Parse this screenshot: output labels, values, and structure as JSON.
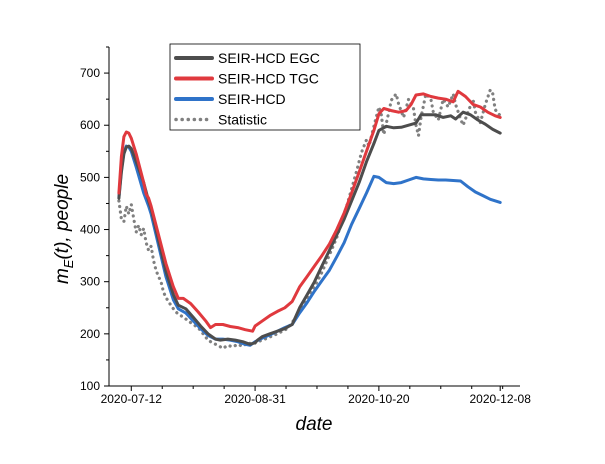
{
  "chart_data": {
    "type": "line",
    "title": "",
    "xlabel": "date",
    "ylabel": "m_E(t), people",
    "ylabel_parts": {
      "m": "m",
      "sub": "E",
      "rest": "(t), people"
    },
    "x_start": "2020-07-03",
    "x_end": "2020-12-16",
    "xlim": [
      "2020-07-03",
      "2020-12-16"
    ],
    "ylim": [
      100,
      750
    ],
    "xticks": [
      "2020-07-12",
      "2020-08-31",
      "2020-10-20",
      "2020-12-08"
    ],
    "yticks": [
      100,
      200,
      300,
      400,
      500,
      600,
      700
    ],
    "legend_position": "top-left",
    "grid": false,
    "series": [
      {
        "name": "SEIR-HCD EGC",
        "color": "#4d4d4d",
        "style": "solid",
        "points": [
          [
            "2020-07-07",
            460
          ],
          [
            "2020-07-08",
            510
          ],
          [
            "2020-07-09",
            545
          ],
          [
            "2020-07-10",
            558
          ],
          [
            "2020-07-11",
            560
          ],
          [
            "2020-07-12",
            555
          ],
          [
            "2020-07-14",
            530
          ],
          [
            "2020-07-17",
            490
          ],
          [
            "2020-07-19",
            455
          ],
          [
            "2020-07-20",
            440
          ],
          [
            "2020-07-23",
            380
          ],
          [
            "2020-07-26",
            320
          ],
          [
            "2020-07-29",
            275
          ],
          [
            "2020-07-31",
            255
          ],
          [
            "2020-08-03",
            248
          ],
          [
            "2020-08-06",
            232
          ],
          [
            "2020-08-09",
            215
          ],
          [
            "2020-08-12",
            200
          ],
          [
            "2020-08-15",
            190
          ],
          [
            "2020-08-17",
            188
          ],
          [
            "2020-08-20",
            190
          ],
          [
            "2020-08-23",
            188
          ],
          [
            "2020-08-26",
            185
          ],
          [
            "2020-08-29",
            180
          ],
          [
            "2020-08-31",
            183
          ],
          [
            "2020-09-01",
            188
          ],
          [
            "2020-09-03",
            195
          ],
          [
            "2020-09-06",
            200
          ],
          [
            "2020-09-09",
            205
          ],
          [
            "2020-09-12",
            210
          ],
          [
            "2020-09-15",
            218
          ],
          [
            "2020-09-18",
            250
          ],
          [
            "2020-09-21",
            275
          ],
          [
            "2020-09-24",
            300
          ],
          [
            "2020-09-27",
            330
          ],
          [
            "2020-09-30",
            360
          ],
          [
            "2020-10-03",
            390
          ],
          [
            "2020-10-06",
            420
          ],
          [
            "2020-10-09",
            455
          ],
          [
            "2020-10-12",
            490
          ],
          [
            "2020-10-15",
            530
          ],
          [
            "2020-10-18",
            565
          ],
          [
            "2020-10-20",
            590
          ],
          [
            "2020-10-23",
            598
          ],
          [
            "2020-10-26",
            595
          ],
          [
            "2020-10-29",
            596
          ],
          [
            "2020-11-01",
            600
          ],
          [
            "2020-11-04",
            604
          ],
          [
            "2020-11-06",
            620
          ],
          [
            "2020-11-09",
            620
          ],
          [
            "2020-11-12",
            620
          ],
          [
            "2020-11-15",
            615
          ],
          [
            "2020-11-18",
            618
          ],
          [
            "2020-11-20",
            612
          ],
          [
            "2020-11-23",
            625
          ],
          [
            "2020-11-26",
            620
          ],
          [
            "2020-11-29",
            610
          ],
          [
            "2020-12-02",
            602
          ],
          [
            "2020-12-05",
            592
          ],
          [
            "2020-12-08",
            585
          ]
        ]
      },
      {
        "name": "SEIR-HCD TGC",
        "color": "#e0393e",
        "style": "solid",
        "points": [
          [
            "2020-07-07",
            470
          ],
          [
            "2020-07-08",
            540
          ],
          [
            "2020-07-09",
            578
          ],
          [
            "2020-07-10",
            587
          ],
          [
            "2020-07-11",
            585
          ],
          [
            "2020-07-12",
            575
          ],
          [
            "2020-07-14",
            545
          ],
          [
            "2020-07-17",
            490
          ],
          [
            "2020-07-18",
            468
          ],
          [
            "2020-07-19",
            460
          ],
          [
            "2020-07-20",
            445
          ],
          [
            "2020-07-23",
            390
          ],
          [
            "2020-07-26",
            335
          ],
          [
            "2020-07-29",
            290
          ],
          [
            "2020-07-31",
            268
          ],
          [
            "2020-08-02",
            268
          ],
          [
            "2020-08-05",
            258
          ],
          [
            "2020-08-08",
            242
          ],
          [
            "2020-08-11",
            225
          ],
          [
            "2020-08-13",
            212
          ],
          [
            "2020-08-15",
            218
          ],
          [
            "2020-08-18",
            218
          ],
          [
            "2020-08-21",
            214
          ],
          [
            "2020-08-24",
            212
          ],
          [
            "2020-08-27",
            208
          ],
          [
            "2020-08-30",
            205
          ],
          [
            "2020-08-31",
            215
          ],
          [
            "2020-09-03",
            225
          ],
          [
            "2020-09-06",
            235
          ],
          [
            "2020-09-09",
            243
          ],
          [
            "2020-09-12",
            250
          ],
          [
            "2020-09-15",
            262
          ],
          [
            "2020-09-18",
            290
          ],
          [
            "2020-09-21",
            310
          ],
          [
            "2020-09-24",
            330
          ],
          [
            "2020-09-27",
            350
          ],
          [
            "2020-09-30",
            372
          ],
          [
            "2020-10-03",
            400
          ],
          [
            "2020-10-06",
            432
          ],
          [
            "2020-10-09",
            470
          ],
          [
            "2020-10-12",
            510
          ],
          [
            "2020-10-15",
            550
          ],
          [
            "2020-10-18",
            590
          ],
          [
            "2020-10-20",
            622
          ],
          [
            "2020-10-22",
            632
          ],
          [
            "2020-10-25",
            628
          ],
          [
            "2020-10-28",
            625
          ],
          [
            "2020-10-31",
            628
          ],
          [
            "2020-11-02",
            640
          ],
          [
            "2020-11-04",
            658
          ],
          [
            "2020-11-07",
            660
          ],
          [
            "2020-11-10",
            655
          ],
          [
            "2020-11-13",
            652
          ],
          [
            "2020-11-16",
            650
          ],
          [
            "2020-11-19",
            645
          ],
          [
            "2020-11-21",
            665
          ],
          [
            "2020-11-24",
            655
          ],
          [
            "2020-11-27",
            640
          ],
          [
            "2020-11-30",
            635
          ],
          [
            "2020-12-03",
            625
          ],
          [
            "2020-12-06",
            618
          ],
          [
            "2020-12-08",
            615
          ]
        ]
      },
      {
        "name": "SEIR-HCD",
        "color": "#2f73c9",
        "style": "solid",
        "points": [
          [
            "2020-07-07",
            462
          ],
          [
            "2020-07-08",
            515
          ],
          [
            "2020-07-09",
            548
          ],
          [
            "2020-07-10",
            560
          ],
          [
            "2020-07-11",
            558
          ],
          [
            "2020-07-12",
            550
          ],
          [
            "2020-07-14",
            520
          ],
          [
            "2020-07-17",
            470
          ],
          [
            "2020-07-19",
            445
          ],
          [
            "2020-07-20",
            430
          ],
          [
            "2020-07-23",
            370
          ],
          [
            "2020-07-26",
            310
          ],
          [
            "2020-07-29",
            265
          ],
          [
            "2020-07-31",
            248
          ],
          [
            "2020-08-03",
            240
          ],
          [
            "2020-08-06",
            225
          ],
          [
            "2020-08-09",
            210
          ],
          [
            "2020-08-12",
            197
          ],
          [
            "2020-08-15",
            190
          ],
          [
            "2020-08-18",
            190
          ],
          [
            "2020-08-21",
            188
          ],
          [
            "2020-08-24",
            185
          ],
          [
            "2020-08-27",
            180
          ],
          [
            "2020-08-29",
            178
          ],
          [
            "2020-08-31",
            185
          ],
          [
            "2020-09-03",
            192
          ],
          [
            "2020-09-06",
            198
          ],
          [
            "2020-09-09",
            205
          ],
          [
            "2020-09-12",
            212
          ],
          [
            "2020-09-15",
            218
          ],
          [
            "2020-09-18",
            240
          ],
          [
            "2020-09-21",
            260
          ],
          [
            "2020-09-24",
            282
          ],
          [
            "2020-09-27",
            302
          ],
          [
            "2020-09-30",
            322
          ],
          [
            "2020-10-03",
            348
          ],
          [
            "2020-10-06",
            375
          ],
          [
            "2020-10-09",
            410
          ],
          [
            "2020-10-12",
            440
          ],
          [
            "2020-10-15",
            470
          ],
          [
            "2020-10-18",
            502
          ],
          [
            "2020-10-20",
            500
          ],
          [
            "2020-10-23",
            490
          ],
          [
            "2020-10-26",
            488
          ],
          [
            "2020-10-29",
            490
          ],
          [
            "2020-11-01",
            495
          ],
          [
            "2020-11-04",
            500
          ],
          [
            "2020-11-07",
            497
          ],
          [
            "2020-11-10",
            496
          ],
          [
            "2020-11-13",
            495
          ],
          [
            "2020-11-16",
            495
          ],
          [
            "2020-11-19",
            494
          ],
          [
            "2020-11-22",
            493
          ],
          [
            "2020-11-25",
            482
          ],
          [
            "2020-11-28",
            472
          ],
          [
            "2020-12-01",
            465
          ],
          [
            "2020-12-04",
            458
          ],
          [
            "2020-12-08",
            452
          ]
        ]
      },
      {
        "name": "Statistic",
        "color": "#808080",
        "style": "dotted",
        "points": [
          [
            "2020-07-07",
            455
          ],
          [
            "2020-07-08",
            420
          ],
          [
            "2020-07-09",
            415
          ],
          [
            "2020-07-10",
            445
          ],
          [
            "2020-07-11",
            430
          ],
          [
            "2020-07-12",
            448
          ],
          [
            "2020-07-13",
            420
          ],
          [
            "2020-07-14",
            395
          ],
          [
            "2020-07-15",
            408
          ],
          [
            "2020-07-16",
            390
          ],
          [
            "2020-07-17",
            402
          ],
          [
            "2020-07-18",
            375
          ],
          [
            "2020-07-19",
            360
          ],
          [
            "2020-07-20",
            368
          ],
          [
            "2020-07-21",
            340
          ],
          [
            "2020-07-22",
            322
          ],
          [
            "2020-07-23",
            310
          ],
          [
            "2020-07-24",
            300
          ],
          [
            "2020-07-25",
            280
          ],
          [
            "2020-07-26",
            270
          ],
          [
            "2020-07-27",
            262
          ],
          [
            "2020-07-28",
            255
          ],
          [
            "2020-07-29",
            248
          ],
          [
            "2020-07-30",
            242
          ],
          [
            "2020-07-31",
            238
          ],
          [
            "2020-08-02",
            232
          ],
          [
            "2020-08-04",
            225
          ],
          [
            "2020-08-06",
            218
          ],
          [
            "2020-08-08",
            212
          ],
          [
            "2020-08-10",
            200
          ],
          [
            "2020-08-12",
            188
          ],
          [
            "2020-08-14",
            182
          ],
          [
            "2020-08-16",
            178
          ],
          [
            "2020-08-18",
            172
          ],
          [
            "2020-08-20",
            178
          ],
          [
            "2020-08-22",
            175
          ],
          [
            "2020-08-24",
            180
          ],
          [
            "2020-08-26",
            176
          ],
          [
            "2020-08-28",
            183
          ],
          [
            "2020-08-30",
            180
          ],
          [
            "2020-09-01",
            185
          ],
          [
            "2020-09-03",
            188
          ],
          [
            "2020-09-05",
            192
          ],
          [
            "2020-09-07",
            196
          ],
          [
            "2020-09-09",
            200
          ],
          [
            "2020-09-11",
            205
          ],
          [
            "2020-09-13",
            210
          ],
          [
            "2020-09-15",
            222
          ],
          [
            "2020-09-17",
            235
          ],
          [
            "2020-09-19",
            250
          ],
          [
            "2020-09-21",
            268
          ],
          [
            "2020-09-23",
            282
          ],
          [
            "2020-09-25",
            300
          ],
          [
            "2020-09-27",
            318
          ],
          [
            "2020-09-29",
            340
          ],
          [
            "2020-10-01",
            362
          ],
          [
            "2020-10-03",
            385
          ],
          [
            "2020-10-05",
            415
          ],
          [
            "2020-10-07",
            445
          ],
          [
            "2020-10-09",
            478
          ],
          [
            "2020-10-11",
            512
          ],
          [
            "2020-10-13",
            548
          ],
          [
            "2020-10-15",
            572
          ],
          [
            "2020-10-16",
            560
          ],
          [
            "2020-10-18",
            598
          ],
          [
            "2020-10-20",
            635
          ],
          [
            "2020-10-21",
            620
          ],
          [
            "2020-10-22",
            582
          ],
          [
            "2020-10-24",
            625
          ],
          [
            "2020-10-25",
            648
          ],
          [
            "2020-10-27",
            660
          ],
          [
            "2020-10-28",
            640
          ],
          [
            "2020-10-30",
            615
          ],
          [
            "2020-11-01",
            650
          ],
          [
            "2020-11-03",
            632
          ],
          [
            "2020-11-04",
            600
          ],
          [
            "2020-11-05",
            580
          ],
          [
            "2020-11-06",
            615
          ],
          [
            "2020-11-08",
            660
          ],
          [
            "2020-11-10",
            650
          ],
          [
            "2020-11-11",
            625
          ],
          [
            "2020-11-13",
            610
          ],
          [
            "2020-11-15",
            650
          ],
          [
            "2020-11-17",
            635
          ],
          [
            "2020-11-19",
            660
          ],
          [
            "2020-11-20",
            640
          ],
          [
            "2020-11-22",
            612
          ],
          [
            "2020-11-23",
            600
          ],
          [
            "2020-11-25",
            625
          ],
          [
            "2020-11-27",
            650
          ],
          [
            "2020-11-28",
            625
          ],
          [
            "2020-11-30",
            605
          ],
          [
            "2020-12-02",
            640
          ],
          [
            "2020-12-04",
            668
          ],
          [
            "2020-12-05",
            660
          ],
          [
            "2020-12-06",
            630
          ],
          [
            "2020-12-08",
            618
          ]
        ]
      }
    ]
  }
}
